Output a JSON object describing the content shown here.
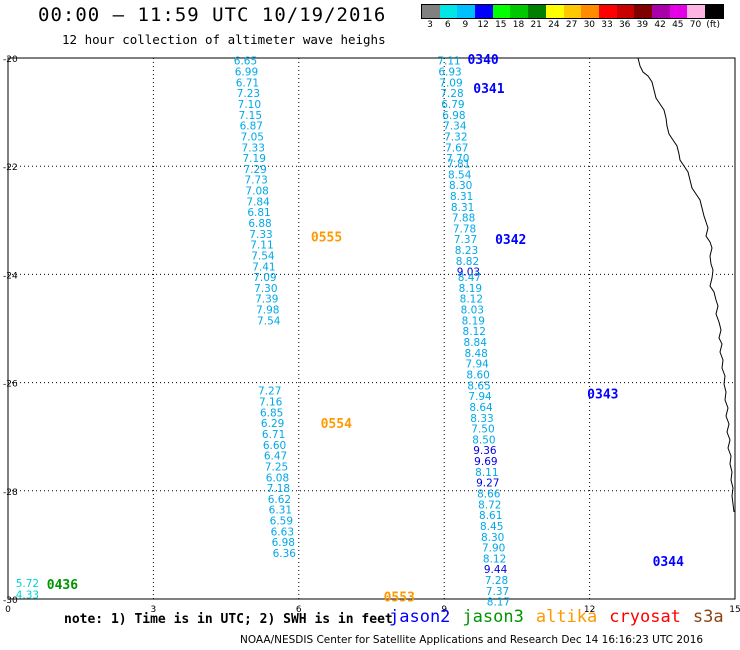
{
  "header": {
    "title": "00:00 – 11:59 UTC 10/19/2016",
    "subtitle": "12 hour collection of altimeter wave heighs"
  },
  "legend": {
    "labels": [
      "3",
      "6",
      "9",
      "12",
      "15",
      "18",
      "21",
      "24",
      "27",
      "30",
      "33",
      "36",
      "39",
      "42",
      "45",
      "70",
      "(ft)"
    ],
    "colors": [
      "#808080",
      "#00e6e6",
      "#00bfff",
      "#0000ff",
      "#00ff00",
      "#00c800",
      "#008000",
      "#ffff00",
      "#ffc800",
      "#ff8c00",
      "#ff0000",
      "#c80000",
      "#800000",
      "#aa00aa",
      "#e600e6",
      "#ffb4e6",
      "#000000"
    ]
  },
  "axes": {
    "y_labels": [
      "-20",
      "-22",
      "-24",
      "-26",
      "-28",
      "-30"
    ],
    "x_labels": [
      "0",
      "3",
      "6",
      "9",
      "12",
      "15"
    ]
  },
  "chart_data": {
    "type": "scatter",
    "title": "",
    "xlabel": "",
    "ylabel": "",
    "x_range": [
      0,
      15
    ],
    "y_range": [
      -30,
      -20
    ],
    "grid": true,
    "tracks": [
      {
        "label": "0340",
        "sat": "jason2",
        "x": [
          9.1,
          9.12,
          9.14,
          9.16,
          9.18,
          9.2,
          9.22,
          9.24,
          9.26,
          9.28
        ],
        "y": [
          -20.05,
          -20.25,
          -20.45,
          -20.65,
          -20.85,
          -21.05,
          -21.25,
          -21.45,
          -21.65,
          -21.85
        ],
        "values": [
          "7.11",
          "6.93",
          "7.09",
          "7.28",
          "6.79",
          "6.98",
          "7.34",
          "7.32",
          "7.67",
          "7.70"
        ]
      },
      {
        "label": "0341",
        "sat": "jason2",
        "x": [
          9.3,
          9.32,
          9.34,
          9.36,
          9.38,
          9.4,
          9.42,
          9.44,
          9.46,
          9.48,
          9.5
        ],
        "y": [
          -21.95,
          -22.15,
          -22.35,
          -22.55,
          -22.75,
          -22.95,
          -23.15,
          -23.35,
          -23.55,
          -23.75,
          -23.95
        ],
        "values": [
          "7.81",
          "8.54",
          "8.30",
          "8.31",
          "8.31",
          "7.88",
          "7.78",
          "7.37",
          "8.23",
          "8.82",
          "9.03"
        ]
      },
      {
        "label": "0342",
        "sat": "jason2",
        "x": [
          9.52,
          9.54,
          9.56,
          9.58,
          9.6,
          9.62,
          9.64,
          9.66,
          9.68,
          9.7,
          9.72,
          9.74,
          9.76
        ],
        "y": [
          -24.05,
          -24.25,
          -24.45,
          -24.65,
          -24.85,
          -25.05,
          -25.25,
          -25.45,
          -25.65,
          -25.85,
          -26.05,
          -26.25,
          -26.45
        ],
        "values": [
          "8.47",
          "8.19",
          "8.12",
          "8.03",
          "8.19",
          "8.12",
          "8.84",
          "8.48",
          "7.94",
          "8.60",
          "8.65",
          "7.94",
          "8.64"
        ]
      },
      {
        "label": "0343",
        "sat": "jason2",
        "x": [
          9.78,
          9.8,
          9.82,
          9.84,
          9.86,
          9.88,
          9.9,
          9.92,
          9.94,
          9.96,
          9.98,
          10.0,
          10.02,
          10.04,
          10.06,
          10.08,
          10.1
        ],
        "y": [
          -26.65,
          -26.85,
          -27.05,
          -27.25,
          -27.45,
          -27.65,
          -27.85,
          -28.05,
          -28.25,
          -28.45,
          -28.65,
          -28.85,
          -29.05,
          -29.25,
          -29.45,
          -29.65,
          -29.85
        ],
        "values": [
          "8.33",
          "7.50",
          "8.50",
          "9.36",
          "9.69",
          "8.11",
          "9.27",
          "8.66",
          "8.72",
          "8.61",
          "8.45",
          "8.30",
          "7.90",
          "8.12",
          "9.44",
          "7.28",
          "7.37"
        ]
      },
      {
        "label": "0344",
        "sat": "jason2",
        "x": [
          10.12
        ],
        "y": [
          -30.05
        ],
        "values": [
          "8.17"
        ]
      },
      {
        "label": "0555",
        "sat": "altika",
        "x": [
          4.9,
          4.92,
          4.94,
          4.96,
          4.98,
          5.0,
          5.02,
          5.04,
          5.06,
          5.08,
          5.1,
          5.12,
          5.14,
          5.16,
          5.18,
          5.2,
          5.22,
          5.24,
          5.26,
          5.28,
          5.3,
          5.32,
          5.34,
          5.36,
          5.38
        ],
        "y": [
          -20.05,
          -20.25,
          -20.45,
          -20.65,
          -20.85,
          -21.05,
          -21.25,
          -21.45,
          -21.65,
          -21.85,
          -22.05,
          -22.25,
          -22.45,
          -22.65,
          -22.85,
          -23.05,
          -23.25,
          -23.45,
          -23.65,
          -23.85,
          -24.05,
          -24.25,
          -24.45,
          -24.65,
          -24.85
        ],
        "values": [
          "6.65",
          "6.99",
          "6.71",
          "7.23",
          "7.10",
          "7.15",
          "6.87",
          "7.05",
          "7.33",
          "7.19",
          "7.29",
          "7.73",
          "7.08",
          "7.84",
          "6.81",
          "6.88",
          "7.33",
          "7.11",
          "7.54",
          "7.41",
          "7.09",
          "7.30",
          "7.39",
          "7.98",
          "7.54"
        ]
      },
      {
        "label": "0554",
        "sat": "altika",
        "x": [
          5.4,
          5.42,
          5.44,
          5.46,
          5.48,
          5.5,
          5.52,
          5.54,
          5.56,
          5.58,
          5.6,
          5.62,
          5.64,
          5.66,
          5.68,
          5.7
        ],
        "y": [
          -26.15,
          -26.35,
          -26.55,
          -26.75,
          -26.95,
          -27.15,
          -27.35,
          -27.55,
          -27.75,
          -27.95,
          -28.15,
          -28.35,
          -28.55,
          -28.75,
          -28.95,
          -29.15
        ],
        "values": [
          "7.27",
          "7.16",
          "6.85",
          "6.29",
          "6.71",
          "6.60",
          "6.47",
          "7.25",
          "6.08",
          "7.18",
          "6.62",
          "6.31",
          "6.59",
          "6.63",
          "6.98",
          "6.36"
        ]
      },
      {
        "label": "0553",
        "sat": "altika",
        "x": [],
        "y": [],
        "values": []
      },
      {
        "label": "0436",
        "sat": "jason3",
        "x": [
          0.4,
          0.4
        ],
        "y": [
          -29.7,
          -29.92
        ],
        "values": [
          "5.72",
          "4.33"
        ]
      }
    ]
  },
  "satellites": [
    {
      "name": "jason2",
      "color": "#0000ff"
    },
    {
      "name": "jason3",
      "color": "#009600"
    },
    {
      "name": "altika",
      "color": "#ff9900"
    },
    {
      "name": "cryosat",
      "color": "#ff0000"
    },
    {
      "name": "s3a",
      "color": "#8b4513"
    }
  ],
  "footer": {
    "note": "note: 1) Time is in UTC; 2) SWH is in feet",
    "credit": "NOAA/NESDIS Center for Satellite Applications and Research   Dec 14 16:16:23 UTC 2016"
  }
}
